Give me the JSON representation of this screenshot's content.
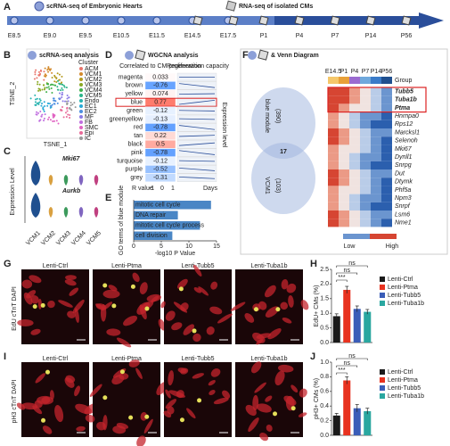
{
  "panel_labels": [
    "A",
    "B",
    "C",
    "D",
    "E",
    "F",
    "G",
    "H",
    "I",
    "J"
  ],
  "timeline": {
    "scrna_label": "scRNA-seq of Embryonic Hearts",
    "rnaseq_label": "RNA-seq of isolated CMs",
    "stages": [
      "E8.5",
      "E9.0",
      "E9.5",
      "E10.5",
      "E11.5",
      "E14.5",
      "E17.5",
      "P1",
      "P4",
      "P7",
      "P14",
      "P56"
    ]
  },
  "tsne": {
    "title": "scRNA-seq analysis",
    "x_label": "TSNE_1",
    "y_label": "TSNE_2",
    "legend_title": "Cluster",
    "clusters": [
      "ACM",
      "VCM1",
      "VCM2",
      "VCM3",
      "VCM4",
      "VCM5",
      "Endo",
      "EC1",
      "EC2",
      "MF",
      "FB",
      "SMC",
      "Epi",
      "IC"
    ],
    "colors": [
      "#e8746b",
      "#d38a2c",
      "#b49a1f",
      "#8aa823",
      "#3fb04a",
      "#2cb58a",
      "#27b3b0",
      "#26a9d6",
      "#4c8fe0",
      "#8a7ae6",
      "#c06ddf",
      "#e062c2",
      "#e86a98",
      "#999999"
    ]
  },
  "violin": {
    "y_label": "Expression Level",
    "genes": [
      "Mki67",
      "Aurkb"
    ],
    "groups": [
      "VCM1",
      "VCM2",
      "VCM3",
      "VCM4",
      "VCM5"
    ]
  },
  "wgcna": {
    "title": "WGCNA analysis",
    "col1": "Correlated to CM proliferation",
    "col2": "Regeneration capacity",
    "side_label": "Expression level",
    "r_label": "R value",
    "scale": [
      -1,
      0,
      1
    ],
    "days_label": "Days",
    "modules": [
      "magenta",
      "brown",
      "yellow",
      "blue",
      "green",
      "greenyellow",
      "red",
      "tan",
      "black",
      "pink",
      "turquoise",
      "purple",
      "grey"
    ],
    "r": [
      0.033,
      -0.76,
      0.074,
      0.77,
      -0.12,
      -0.13,
      -0.78,
      0.22,
      0.5,
      -0.78,
      -0.12,
      -0.52,
      -0.31
    ]
  },
  "venn": {
    "title": "& Venn Diagram",
    "left": "blue module",
    "left_n": "(390)",
    "overlap": "17",
    "right": "VCM1",
    "right_n": "(103)",
    "columns": [
      "E14.5",
      "P1",
      "P4",
      "P7",
      "P14",
      "P56"
    ],
    "group_label": "Group",
    "genes": [
      "Tubb5",
      "Tuba1b",
      "Ptma",
      "Hnrnpa0",
      "Rps12",
      "Marcksl1",
      "Selenoh",
      "Mki67",
      "Dynll1",
      "Snrpg",
      "Dut",
      "Dtymk",
      "Phf5a",
      "Npm3",
      "Snrpf",
      "Lsm6",
      "Nme1"
    ],
    "low": "Low",
    "high": "High"
  },
  "images": {
    "conditions": [
      "Lenti-Ctrl",
      "Lenti-Ptma",
      "Lenti-Tubb5",
      "Lenti-Tuba1b"
    ],
    "stain_g": "EdU cTnT DAPI",
    "stain_i": "pH3 cTnT DAPI"
  },
  "chart_data": [
    {
      "type": "hbar",
      "x_label": "-log10 P Value",
      "y_label": "GO terms of blue module",
      "categories": [
        "mitotic cell cycle",
        "DNA repair",
        "mitotic cell cycle process",
        "cell division"
      ],
      "values": [
        14,
        8,
        12,
        7
      ],
      "color": "#4a86c5",
      "xlim": [
        0,
        15
      ],
      "xticks": [
        0,
        5,
        10,
        15
      ]
    },
    {
      "type": "bar",
      "y_label": "EdU+ CMs (%)",
      "categories": [
        "Lenti-Ctrl",
        "Lenti-Ptma",
        "Lenti-Tubb5",
        "Lenti-Tuba1b"
      ],
      "colors": [
        "#1a1a1a",
        "#e8321f",
        "#3a5db8",
        "#2aa7a0"
      ],
      "values": [
        0.9,
        1.8,
        1.15,
        1.05
      ],
      "errors": [
        0.08,
        0.12,
        0.1,
        0.08
      ],
      "annotations": [
        "***",
        "ns",
        "ns"
      ],
      "ylim": [
        0,
        2.5
      ],
      "yticks": [
        {
          "value": 0,
          "label": "0.0"
        },
        0.5,
        {
          "value": 1,
          "label": "1.0"
        },
        1.5,
        {
          "value": 2,
          "label": "2.0"
        },
        2.5
      ]
    },
    {
      "type": "bar",
      "y_label": "pH3+ CMs (%)",
      "categories": [
        "Lenti-Ctrl",
        "Lenti-Ptma",
        "Lenti-Tubb5",
        "Lenti-Tuba1b"
      ],
      "colors": [
        "#1a1a1a",
        "#e8321f",
        "#3a5db8",
        "#2aa7a0"
      ],
      "values": [
        0.27,
        0.75,
        0.37,
        0.33
      ],
      "errors": [
        0.03,
        0.05,
        0.05,
        0.04
      ],
      "annotations": [
        "***",
        "ns",
        "ns"
      ],
      "ylim": [
        0,
        1
      ],
      "yticks": [
        {
          "value": 0,
          "label": "0.0"
        },
        0.2,
        0.4,
        0.6,
        0.8,
        {
          "value": 1,
          "label": "1.0"
        }
      ]
    }
  ]
}
